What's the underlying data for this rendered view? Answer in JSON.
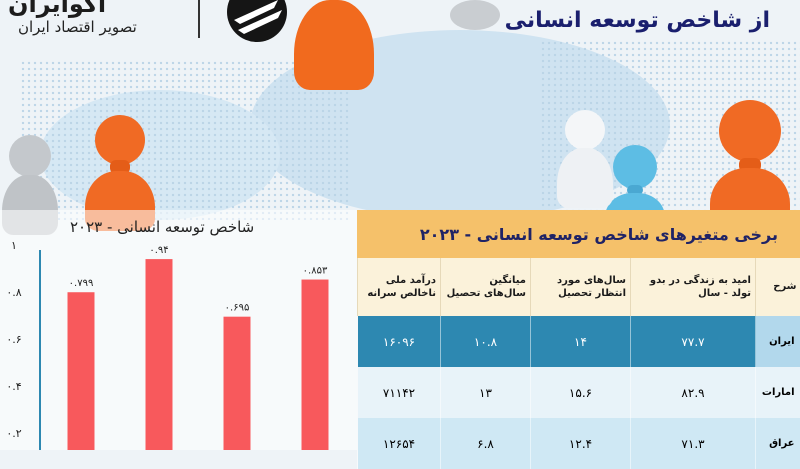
{
  "header": {
    "title": "از شاخص توسعه انسانی",
    "logo_name": "اکوایران",
    "logo_tagline": "تصویر اقتصاد ایران"
  },
  "chart_data": {
    "type": "bar",
    "title": "شاخص توسعه انسانی - ۲۰۲۳",
    "values": [
      0.799,
      0.94,
      0.695,
      0.853
    ],
    "value_labels": [
      "۰.۷۹۹",
      "۰.۹۴",
      "۰.۶۹۵",
      "۰.۸۵۳"
    ],
    "ylim": [
      0,
      1
    ],
    "yticks": [
      "۰.۲",
      "۰.۴",
      "۰.۶",
      "۰.۸",
      "۱"
    ],
    "ytick_values": [
      0.2,
      0.4,
      0.6,
      0.8,
      1
    ],
    "bar_color": "#f8595c",
    "axis_color": "#2d88b1"
  },
  "table": {
    "title": "برخی متغیرهای شاخص توسعه انسانی - ۲۰۲۳",
    "columns": [
      "شرح",
      "امید به زندگی در بدو تولد - سال",
      "سال‌های مورد انتظار تحصیل",
      "میانگین سال‌های تحصیل",
      "درآمد ملی ناخالص سرانه"
    ],
    "rows": [
      {
        "label": "ایران",
        "cells": [
          "۷۷.۷",
          "۱۴",
          "۱۰.۸",
          "۱۶۰۹۶"
        ]
      },
      {
        "label": "امارات",
        "cells": [
          "۸۲.۹",
          "۱۵.۶",
          "۱۳",
          "۷۱۱۴۲"
        ]
      },
      {
        "label": "عراق",
        "cells": [
          "۷۱.۳",
          "۱۲.۴",
          "۶.۸",
          "۱۲۶۵۴"
        ]
      }
    ]
  },
  "colors": {
    "title_navy": "#1a1f6e",
    "table_header": "#f5c16a",
    "accent_blue": "#2d88b1"
  }
}
